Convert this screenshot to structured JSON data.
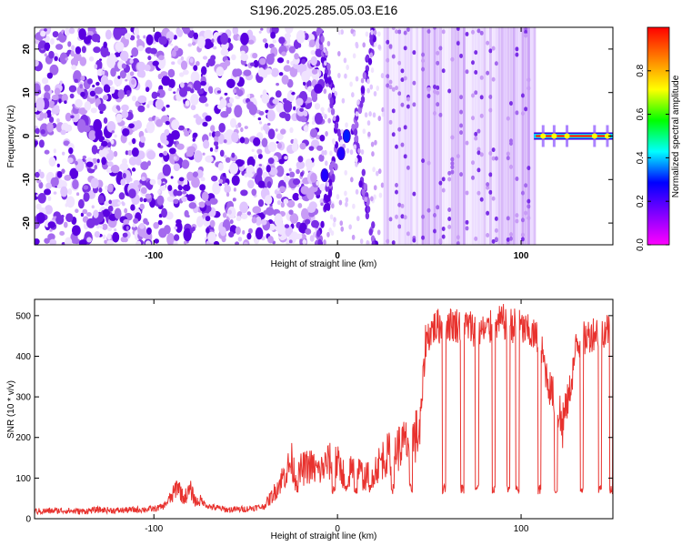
{
  "title": "S196.2025.285.05.03.E16",
  "chart_data": [
    {
      "type": "heatmap",
      "xlabel": "Height of straight line (km)",
      "ylabel": "Frequency (Hz)",
      "xlim": [
        -165,
        150
      ],
      "ylim": [
        -25,
        25
      ],
      "x_ticks": [
        -100,
        0,
        100
      ],
      "y_ticks": [
        -20,
        -10,
        0,
        10,
        20
      ],
      "colorbar": {
        "label": "Normalized spectral amplitude",
        "range": [
          0.0,
          1.0
        ],
        "ticks": [
          0.0,
          0.2,
          0.4,
          0.6,
          0.8
        ],
        "colors": [
          "#ff00ff",
          "#8000ff",
          "#0000ff",
          "#00ffff",
          "#00ff00",
          "#ffff00",
          "#ff8000",
          "#ff0000"
        ]
      },
      "regions": [
        {
          "x_range": [
            -165,
            -8
          ],
          "texture": "blobs",
          "amplitude": 0.05
        },
        {
          "x_range": [
            -8,
            25
          ],
          "texture": "arcs",
          "amplitude": 0.15
        },
        {
          "x_range": [
            25,
            107
          ],
          "texture": "vertical stripes",
          "amplitude": 0.03
        },
        {
          "x_range": [
            107,
            150
          ],
          "texture": "narrow band at 0 Hz",
          "amplitude": 0.95
        }
      ],
      "band_frequency": 0,
      "band_peaks_x": [
        112,
        118,
        125,
        140,
        147
      ]
    },
    {
      "type": "line",
      "xlabel": "Height of straight line (km)",
      "ylabel": "SNR (10 * v/v)",
      "xlim": [
        -165,
        150
      ],
      "ylim": [
        0,
        540
      ],
      "x_ticks": [
        -100,
        0,
        100
      ],
      "y_ticks": [
        0,
        100,
        200,
        300,
        400,
        500
      ],
      "color": "#e8322e",
      "series": [
        {
          "points": [
            [
              -165,
              18
            ],
            [
              -150,
              20
            ],
            [
              -140,
              18
            ],
            [
              -130,
              22
            ],
            [
              -120,
              20
            ],
            [
              -110,
              22
            ],
            [
              -100,
              24
            ],
            [
              -95,
              30
            ],
            [
              -90,
              55
            ],
            [
              -87,
              85
            ],
            [
              -84,
              50
            ],
            [
              -80,
              70
            ],
            [
              -77,
              40
            ],
            [
              -75,
              45
            ],
            [
              -70,
              30
            ],
            [
              -60,
              22
            ],
            [
              -50,
              24
            ],
            [
              -40,
              30
            ],
            [
              -35,
              60
            ],
            [
              -30,
              100
            ],
            [
              -25,
              140
            ],
            [
              -22,
              90
            ],
            [
              -20,
              120
            ],
            [
              -15,
              130
            ],
            [
              -10,
              115
            ],
            [
              -5,
              140
            ],
            [
              0,
              135
            ],
            [
              5,
              100
            ],
            [
              8,
              125
            ],
            [
              12,
              115
            ],
            [
              15,
              100
            ],
            [
              20,
              120
            ],
            [
              25,
              150
            ],
            [
              30,
              165
            ],
            [
              35,
              180
            ],
            [
              40,
              190
            ],
            [
              45,
              215
            ],
            [
              48,
              440
            ],
            [
              52,
              470
            ],
            [
              60,
              480
            ],
            [
              70,
              475
            ],
            [
              80,
              460
            ],
            [
              90,
              485
            ],
            [
              100,
              470
            ],
            [
              110,
              440
            ],
            [
              115,
              330
            ],
            [
              118,
              300
            ],
            [
              122,
              230
            ],
            [
              126,
              300
            ],
            [
              130,
              420
            ],
            [
              135,
              445
            ],
            [
              140,
              460
            ],
            [
              145,
              465
            ],
            [
              150,
              470
            ]
          ],
          "dips_x": [
            -2,
            5,
            10,
            18,
            30,
            40,
            58,
            68,
            76,
            85,
            93,
            98,
            110,
            119,
            133,
            143,
            149
          ],
          "dip_value": 60
        }
      ]
    }
  ]
}
